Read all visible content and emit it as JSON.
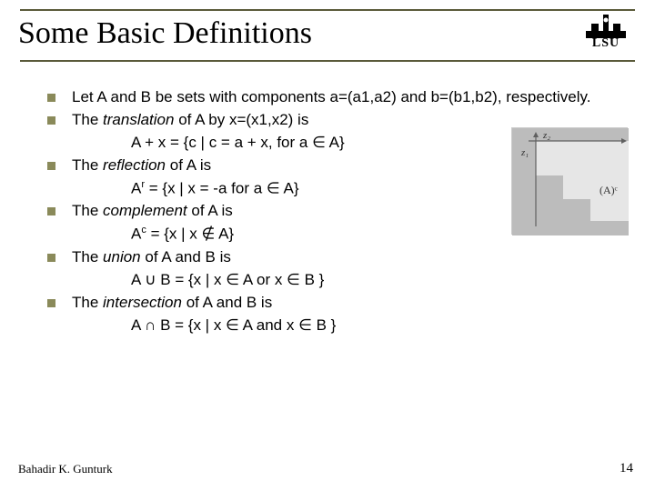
{
  "title": "Some Basic Definitions",
  "logo": {
    "text": "LSU"
  },
  "bullets": [
    {
      "text": "Let A and B be sets with components a=(a1,a2) and b=(b1,b2), respectively."
    },
    {
      "text": "The <em>translation</em> of A by x=(x1,x2) is",
      "sub": "A + x = {c | c = a + x, for a ∈ A}"
    },
    {
      "text": "The <em>reflection</em> of A is",
      "sub": "A<span class=\"sup\">r</span> = {x | x = -a for a ∈ A}"
    },
    {
      "text": "The <em>complement</em> of A is",
      "sub": "A<span class=\"sup\">c</span> = {x | x ∉ A}"
    },
    {
      "text": "The <em>union</em> of A and B is",
      "sub": "A ∪ B = {x | x ∈ A or x ∈ B }"
    },
    {
      "text": "The <em>intersection</em> of A and B is",
      "sub": "A ∩ B = {x | x ∈ A and x ∈ B }"
    }
  ],
  "figure": {
    "label_x": "z₁",
    "label_y": "z₂",
    "annotation": "(A)ᶜ",
    "bg": "#e6e6e6",
    "shape_fill": "#b0b0b0",
    "axis_color": "#606060"
  },
  "footer": {
    "author": "Bahadir K. Gunturk",
    "page": "14"
  },
  "colors": {
    "rule": "#5a5a3a",
    "bullet": "#8a8a5a"
  }
}
